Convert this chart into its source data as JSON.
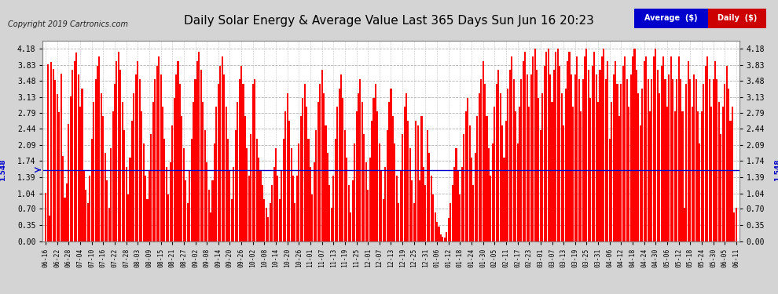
{
  "title": "Daily Solar Energy & Average Value Last 365 Days Sun Jun 16 20:23",
  "copyright": "Copyright 2019 Cartronics.com",
  "average_value": 1.548,
  "yticks": [
    0.0,
    0.35,
    0.7,
    1.04,
    1.39,
    1.74,
    2.09,
    2.44,
    2.79,
    3.13,
    3.48,
    3.83,
    4.18
  ],
  "ylim": [
    0.0,
    4.35
  ],
  "background_color": "#d4d4d4",
  "plot_bg_color": "#ffffff",
  "bar_color": "#ff0000",
  "average_line_color": "#0000cc",
  "title_color": "#000000",
  "legend_avg_bg": "#0000cc",
  "legend_daily_bg": "#cc0000",
  "legend_text_color": "#ffffff",
  "xtick_labels": [
    "06-16",
    "06-22",
    "06-28",
    "07-04",
    "07-10",
    "07-16",
    "07-22",
    "07-28",
    "08-03",
    "08-09",
    "08-15",
    "08-21",
    "08-27",
    "09-02",
    "09-08",
    "09-14",
    "09-20",
    "09-26",
    "10-02",
    "10-08",
    "10-14",
    "10-20",
    "10-26",
    "11-01",
    "11-07",
    "11-13",
    "11-19",
    "11-25",
    "12-01",
    "12-07",
    "12-13",
    "12-19",
    "12-25",
    "12-31",
    "01-06",
    "01-12",
    "01-18",
    "01-24",
    "01-30",
    "02-05",
    "02-11",
    "02-17",
    "02-23",
    "03-01",
    "03-07",
    "03-13",
    "03-19",
    "03-25",
    "03-31",
    "04-06",
    "04-12",
    "04-18",
    "04-24",
    "04-30",
    "05-06",
    "05-12",
    "05-18",
    "05-24",
    "05-30",
    "06-05",
    "06-11"
  ],
  "bar_data": [
    1.05,
    3.85,
    0.55,
    3.9,
    3.75,
    3.5,
    3.2,
    2.8,
    3.65,
    1.85,
    0.95,
    1.25,
    2.55,
    3.15,
    3.72,
    3.92,
    4.1,
    3.62,
    2.92,
    3.32,
    1.52,
    1.12,
    0.82,
    1.42,
    2.22,
    3.02,
    3.52,
    3.82,
    4.02,
    3.22,
    2.72,
    1.92,
    1.32,
    0.72,
    2.02,
    2.82,
    3.42,
    3.92,
    4.12,
    3.72,
    3.02,
    2.42,
    1.62,
    1.02,
    1.82,
    2.62,
    3.22,
    3.62,
    3.92,
    3.52,
    2.82,
    2.12,
    1.42,
    0.92,
    1.52,
    2.32,
    3.02,
    3.52,
    3.82,
    4.02,
    3.62,
    2.92,
    2.22,
    1.62,
    1.02,
    1.72,
    2.52,
    3.12,
    3.62,
    3.92,
    3.42,
    2.72,
    2.02,
    1.32,
    0.82,
    1.52,
    2.22,
    3.02,
    3.52,
    3.92,
    4.12,
    3.72,
    3.02,
    2.42,
    1.72,
    1.12,
    0.62,
    1.32,
    2.12,
    2.92,
    3.42,
    3.82,
    4.02,
    3.62,
    2.92,
    2.22,
    1.52,
    0.92,
    1.62,
    2.42,
    3.02,
    3.52,
    3.82,
    3.42,
    2.72,
    2.02,
    1.42,
    2.32,
    3.42,
    3.52,
    2.22,
    1.82,
    1.52,
    1.22,
    0.92,
    0.72,
    0.52,
    0.82,
    1.22,
    1.62,
    2.02,
    1.42,
    0.92,
    1.52,
    2.22,
    2.82,
    3.22,
    2.62,
    2.02,
    1.42,
    0.82,
    1.42,
    2.12,
    2.72,
    3.12,
    3.42,
    2.92,
    2.22,
    1.62,
    1.02,
    1.72,
    2.42,
    3.02,
    3.42,
    3.72,
    3.22,
    2.52,
    1.92,
    1.22,
    0.72,
    1.42,
    2.22,
    2.92,
    3.32,
    3.62,
    3.12,
    2.42,
    1.82,
    1.22,
    0.62,
    1.32,
    2.12,
    2.82,
    3.22,
    3.52,
    3.02,
    2.32,
    1.72,
    1.12,
    1.82,
    2.62,
    3.12,
    3.42,
    2.82,
    2.12,
    1.52,
    0.92,
    1.62,
    2.42,
    3.02,
    3.32,
    2.72,
    2.12,
    1.42,
    0.82,
    1.52,
    2.32,
    2.92,
    3.22,
    2.62,
    2.02,
    1.32,
    0.82,
    2.62,
    2.52,
    1.32,
    2.72,
    1.62,
    1.22,
    2.42,
    1.92,
    1.42,
    1.02,
    0.62,
    0.42,
    0.32,
    0.15,
    0.1,
    0.08,
    0.2,
    0.5,
    0.82,
    1.22,
    1.62,
    2.02,
    1.52,
    1.02,
    1.62,
    2.32,
    2.82,
    3.12,
    2.52,
    1.82,
    1.22,
    1.92,
    2.72,
    3.22,
    3.52,
    3.92,
    3.42,
    2.72,
    2.02,
    1.42,
    2.12,
    2.92,
    3.42,
    3.72,
    3.22,
    2.52,
    1.82,
    2.62,
    3.32,
    3.72,
    4.02,
    3.52,
    2.82,
    2.12,
    2.92,
    3.52,
    3.92,
    4.12,
    3.62,
    2.92,
    3.62,
    4.02,
    4.18,
    3.72,
    3.12,
    2.42,
    3.22,
    3.82,
    4.12,
    4.18,
    3.62,
    3.02,
    3.72,
    4.12,
    4.18,
    3.82,
    3.22,
    2.52,
    3.32,
    3.92,
    4.12,
    3.62,
    2.92,
    3.62,
    4.02,
    3.52,
    2.82,
    3.52,
    4.02,
    4.18,
    3.72,
    3.12,
    3.82,
    4.12,
    3.62,
    3.02,
    3.72,
    4.02,
    4.18,
    3.52,
    3.92,
    2.22,
    3.02,
    3.62,
    3.92,
    3.42,
    2.72,
    3.42,
    3.82,
    4.02,
    3.52,
    2.92,
    3.62,
    4.02,
    4.18,
    3.72,
    3.22,
    2.52,
    3.32,
    3.92,
    4.02,
    3.52,
    2.82,
    3.52,
    4.02,
    4.18,
    3.72,
    3.22,
    3.82,
    4.02,
    3.52,
    2.92,
    3.62,
    4.02,
    3.52,
    2.82,
    3.52,
    4.02,
    3.52,
    2.82,
    0.72,
    3.42,
    3.92,
    3.52,
    2.92,
    3.62,
    3.52,
    2.82,
    2.12,
    2.82,
    3.42,
    3.82,
    4.02,
    3.52,
    2.92,
    3.52,
    3.92,
    3.52,
    3.02,
    2.32,
    2.92,
    3.42,
    3.82,
    3.32,
    2.62,
    2.92,
    0.62,
    0.72
  ]
}
